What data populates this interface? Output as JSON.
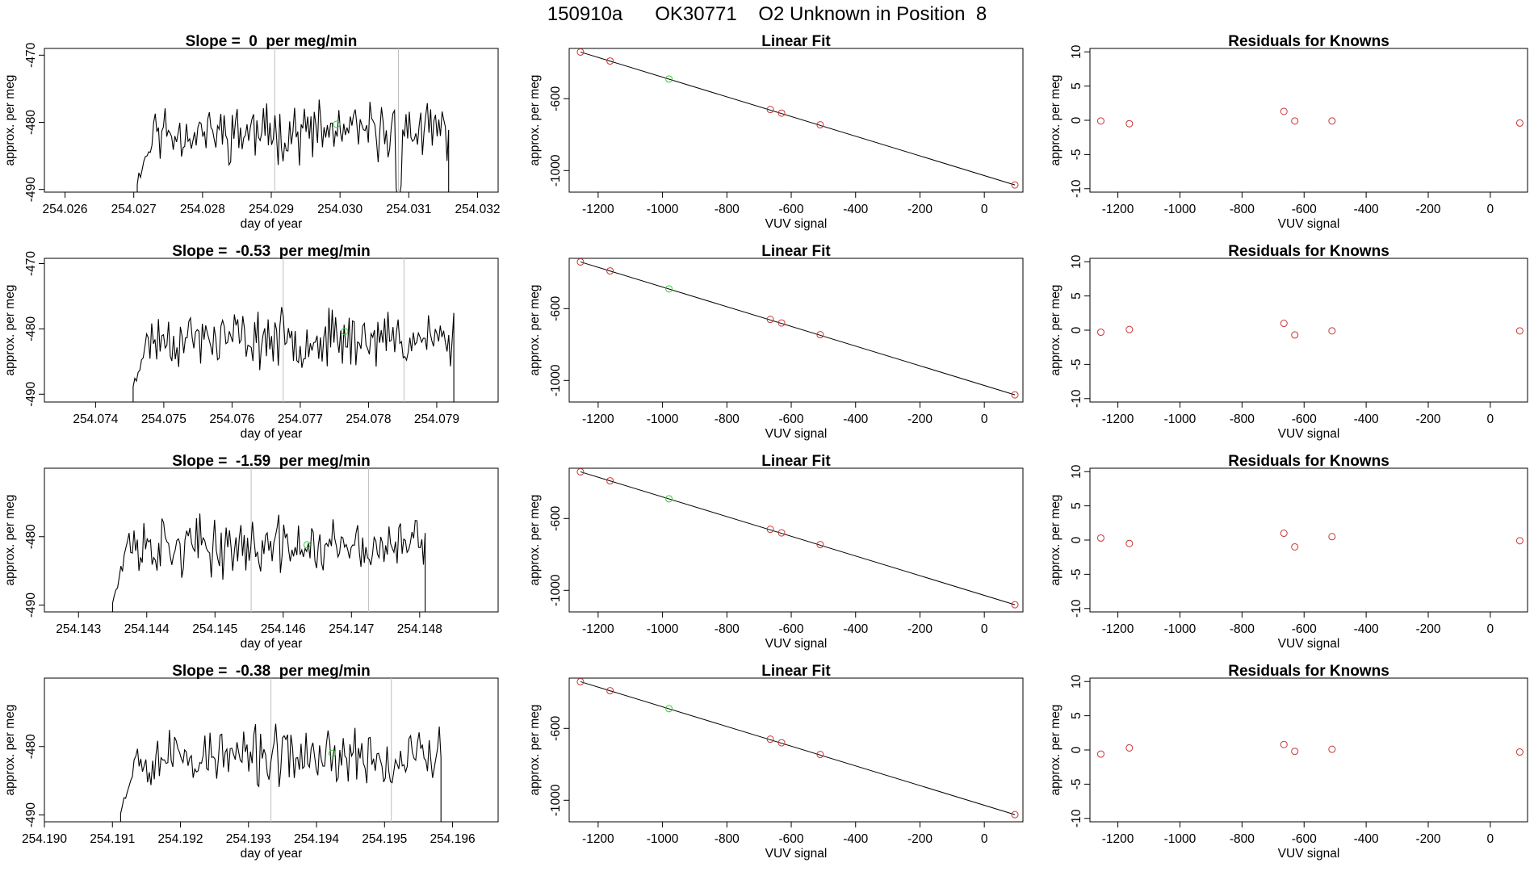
{
  "page_title": "150910a      OK30771    O2 Unknown in Position  8",
  "colors": {
    "line": "#000000",
    "unknown": "#33cc33",
    "known": "#cc3333",
    "marker": "#bfbfbf"
  },
  "chart_data": [
    {
      "type": "line",
      "title": "Slope =  0  per meg/min",
      "xlabel": "day of year",
      "ylabel": "approx. per meg",
      "xlim": [
        254.0257,
        254.0323
      ],
      "ylim": [
        -490.4,
        -469.0
      ],
      "xticks": [
        "254.026",
        "254.027",
        "254.028",
        "254.029",
        "254.030",
        "254.031",
        "254.032"
      ],
      "yticks": [
        "-490",
        "-480",
        "-470"
      ],
      "x_start": 254.02705,
      "x_end": 254.03158,
      "seed": 11,
      "markers": [
        254.02905,
        254.03085
      ],
      "dips": [
        [
          254.03085,
          -492
        ]
      ],
      "unknown_point": {
        "x": 254.02995,
        "y": -480.3
      },
      "grid": false
    },
    {
      "type": "scatter",
      "title": "Linear Fit",
      "xlabel": "VUV signal",
      "ylabel": "approx. per meg",
      "xlim": [
        -1290,
        120
      ],
      "ylim": [
        -1120,
        -320
      ],
      "xticks": [
        "-1200",
        "-1000",
        "-800",
        "-600",
        "-400",
        "-200",
        "0"
      ],
      "yticks": [
        "-1000",
        "-600"
      ],
      "known_points": [
        [
          -1255,
          -340
        ],
        [
          -1163,
          -390
        ],
        [
          -665,
          -660
        ],
        [
          -630,
          -680
        ],
        [
          -510,
          -745
        ],
        [
          95,
          -1080
        ]
      ],
      "unknown_point": [
        -980,
        -490
      ],
      "fit_line": [
        [
          -1255,
          -340
        ],
        [
          95,
          -1080
        ]
      ],
      "grid": false
    },
    {
      "type": "scatter",
      "title": "Residuals for Knowns",
      "xlabel": "VUV signal",
      "ylabel": "approx. per meg",
      "xlim": [
        -1290,
        120
      ],
      "ylim": [
        -10.5,
        10.5
      ],
      "xticks": [
        "-1200",
        "-1000",
        "-800",
        "-600",
        "-400",
        "-200",
        "0"
      ],
      "yticks": [
        "-10",
        "-5",
        "0",
        "5",
        "10"
      ],
      "points": [
        [
          -1255,
          -0.1
        ],
        [
          -1163,
          -0.5
        ],
        [
          -665,
          1.3
        ],
        [
          -630,
          -0.1
        ],
        [
          -510,
          -0.1
        ],
        [
          95,
          -0.4
        ]
      ],
      "grid": false
    },
    {
      "type": "line",
      "title": "Slope =  -0.53  per meg/min",
      "xlabel": "day of year",
      "ylabel": "approx. per meg",
      "xlim": [
        254.07325,
        254.0799
      ],
      "ylim": [
        -491.2,
        -469.2
      ],
      "xticks": [
        "254.074",
        "254.075",
        "254.076",
        "254.077",
        "254.078",
        "254.079"
      ],
      "yticks": [
        "-490",
        "-480",
        "-470"
      ],
      "x_start": 254.07455,
      "x_end": 254.07925,
      "seed": 23,
      "markers": [
        254.07675,
        254.07852
      ],
      "dips": [
        [
          254.07852,
          -484
        ]
      ],
      "unknown_point": {
        "x": 254.07765,
        "y": -480.4
      },
      "grid": false
    },
    {
      "type": "scatter",
      "title": "Linear Fit",
      "xlabel": "VUV signal",
      "ylabel": "approx. per meg",
      "xlim": [
        -1290,
        120
      ],
      "ylim": [
        -1120,
        -320
      ],
      "xticks": [
        "-1200",
        "-1000",
        "-800",
        "-600",
        "-400",
        "-200",
        "0"
      ],
      "yticks": [
        "-1000",
        "-600"
      ],
      "known_points": [
        [
          -1255,
          -340
        ],
        [
          -1163,
          -390
        ],
        [
          -665,
          -660
        ],
        [
          -630,
          -680
        ],
        [
          -510,
          -745
        ],
        [
          95,
          -1080
        ]
      ],
      "unknown_point": [
        -980,
        -490
      ],
      "fit_line": [
        [
          -1255,
          -340
        ],
        [
          95,
          -1080
        ]
      ],
      "grid": false
    },
    {
      "type": "scatter",
      "title": "Residuals for Knowns",
      "xlabel": "VUV signal",
      "ylabel": "approx. per meg",
      "xlim": [
        -1290,
        120
      ],
      "ylim": [
        -10.5,
        10.5
      ],
      "xticks": [
        "-1200",
        "-1000",
        "-800",
        "-600",
        "-400",
        "-200",
        "0"
      ],
      "yticks": [
        "-10",
        "-5",
        "0",
        "5",
        "10"
      ],
      "points": [
        [
          -1255,
          -0.3
        ],
        [
          -1163,
          0.1
        ],
        [
          -665,
          1.0
        ],
        [
          -630,
          -0.7
        ],
        [
          -510,
          -0.1
        ],
        [
          95,
          -0.1
        ]
      ],
      "grid": false
    },
    {
      "type": "line",
      "title": "Slope =  -1.59  per meg/min",
      "xlabel": "day of year",
      "ylabel": "approx. per meg",
      "xlim": [
        254.1425,
        254.14915
      ],
      "ylim": [
        -491.0,
        -470.0
      ],
      "xticks": [
        "254.143",
        "254.144",
        "254.145",
        "254.146",
        "254.147",
        "254.148"
      ],
      "yticks": [
        "-490",
        "-480"
      ],
      "x_start": 254.1435,
      "x_end": 254.14808,
      "seed": 37,
      "markers": [
        254.14553,
        254.14725
      ],
      "dips": [
        [
          254.14725,
          -484
        ]
      ],
      "unknown_point": {
        "x": 254.14635,
        "y": -481.2
      },
      "grid": false
    },
    {
      "type": "scatter",
      "title": "Linear Fit",
      "xlabel": "VUV signal",
      "ylabel": "approx. per meg",
      "xlim": [
        -1290,
        120
      ],
      "ylim": [
        -1120,
        -320
      ],
      "xticks": [
        "-1200",
        "-1000",
        "-800",
        "-600",
        "-400",
        "-200",
        "0"
      ],
      "yticks": [
        "-1000",
        "-600"
      ],
      "known_points": [
        [
          -1255,
          -340
        ],
        [
          -1163,
          -390
        ],
        [
          -665,
          -660
        ],
        [
          -630,
          -680
        ],
        [
          -510,
          -745
        ],
        [
          95,
          -1080
        ]
      ],
      "unknown_point": [
        -980,
        -490
      ],
      "fit_line": [
        [
          -1255,
          -340
        ],
        [
          95,
          -1080
        ]
      ],
      "grid": false
    },
    {
      "type": "scatter",
      "title": "Residuals for Knowns",
      "xlabel": "VUV signal",
      "ylabel": "approx. per meg",
      "xlim": [
        -1290,
        120
      ],
      "ylim": [
        -10.5,
        10.5
      ],
      "xticks": [
        "-1200",
        "-1000",
        "-800",
        "-600",
        "-400",
        "-200",
        "0"
      ],
      "yticks": [
        "-10",
        "-5",
        "0",
        "5",
        "10"
      ],
      "points": [
        [
          -1255,
          0.3
        ],
        [
          -1163,
          -0.5
        ],
        [
          -665,
          1.0
        ],
        [
          -630,
          -1.0
        ],
        [
          -510,
          0.5
        ],
        [
          95,
          -0.1
        ]
      ],
      "grid": false
    },
    {
      "type": "line",
      "title": "Slope =  -0.38  per meg/min",
      "xlabel": "day of year",
      "ylabel": "approx. per meg",
      "xlim": [
        254.19,
        254.19667
      ],
      "ylim": [
        -491.0,
        -470.0
      ],
      "xticks": [
        "254.190",
        "254.191",
        "254.192",
        "254.193",
        "254.194",
        "254.195",
        "254.196"
      ],
      "yticks": [
        "-490",
        "-480"
      ],
      "x_start": 254.19112,
      "x_end": 254.19583,
      "seed": 53,
      "markers": [
        254.19333,
        254.1951
      ],
      "dips": [
        [
          254.1951,
          -486
        ]
      ],
      "unknown_point": {
        "x": 254.19423,
        "y": -481.0
      },
      "grid": false
    },
    {
      "type": "scatter",
      "title": "Linear Fit",
      "xlabel": "VUV signal",
      "ylabel": "approx. per meg",
      "xlim": [
        -1290,
        120
      ],
      "ylim": [
        -1120,
        -320
      ],
      "xticks": [
        "-1200",
        "-1000",
        "-800",
        "-600",
        "-400",
        "-200",
        "0"
      ],
      "yticks": [
        "-1000",
        "-600"
      ],
      "known_points": [
        [
          -1255,
          -340
        ],
        [
          -1163,
          -390
        ],
        [
          -665,
          -660
        ],
        [
          -630,
          -680
        ],
        [
          -510,
          -745
        ],
        [
          95,
          -1080
        ]
      ],
      "unknown_point": [
        -980,
        -490
      ],
      "fit_line": [
        [
          -1255,
          -340
        ],
        [
          95,
          -1080
        ]
      ],
      "grid": false
    },
    {
      "type": "scatter",
      "title": "Residuals for Knowns",
      "xlabel": "VUV signal",
      "ylabel": "approx. per meg",
      "xlim": [
        -1290,
        120
      ],
      "ylim": [
        -10.5,
        10.5
      ],
      "xticks": [
        "-1200",
        "-1000",
        "-800",
        "-600",
        "-400",
        "-200",
        "0"
      ],
      "yticks": [
        "-10",
        "-5",
        "0",
        "5",
        "10"
      ],
      "points": [
        [
          -1255,
          -0.6
        ],
        [
          -1163,
          0.3
        ],
        [
          -665,
          0.8
        ],
        [
          -630,
          -0.2
        ],
        [
          -510,
          0.1
        ],
        [
          95,
          -0.3
        ]
      ],
      "grid": false
    }
  ]
}
